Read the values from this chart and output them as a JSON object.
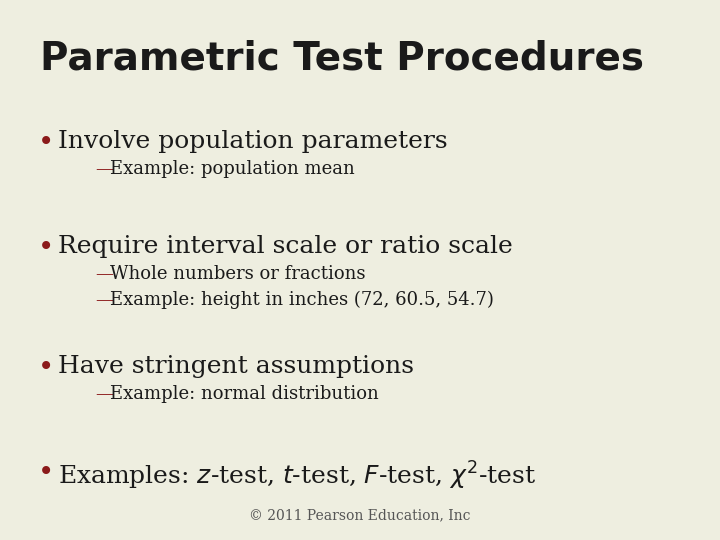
{
  "title": "Parametric Test Procedures",
  "background_color": "#EEEEE0",
  "title_color": "#1a1a1a",
  "title_fontsize": 28,
  "title_fontweight": "bold",
  "bullet_color": "#8B1A1A",
  "dash_color": "#8B1A1A",
  "text_color": "#1a1a1a",
  "footer_color": "#555555",
  "footer": "© 2011 Pearson Education, Inc",
  "bullet_fontsize": 18,
  "sub_fontsize": 13,
  "footer_fontsize": 10,
  "bullets": [
    {
      "text": "Involve population parameters",
      "sub": [
        "Example: population mean"
      ]
    },
    {
      "text": "Require interval scale or ratio scale",
      "sub": [
        "Whole numbers or fractions",
        "Example: height in inches (72, 60.5, 54.7)"
      ]
    },
    {
      "text": "Have stringent assumptions",
      "sub": [
        "Example: normal distribution"
      ]
    },
    {
      "text": "Examples: $z$-test, $t$-test, $F$-test, $\\chi^2$-test",
      "sub": []
    }
  ]
}
